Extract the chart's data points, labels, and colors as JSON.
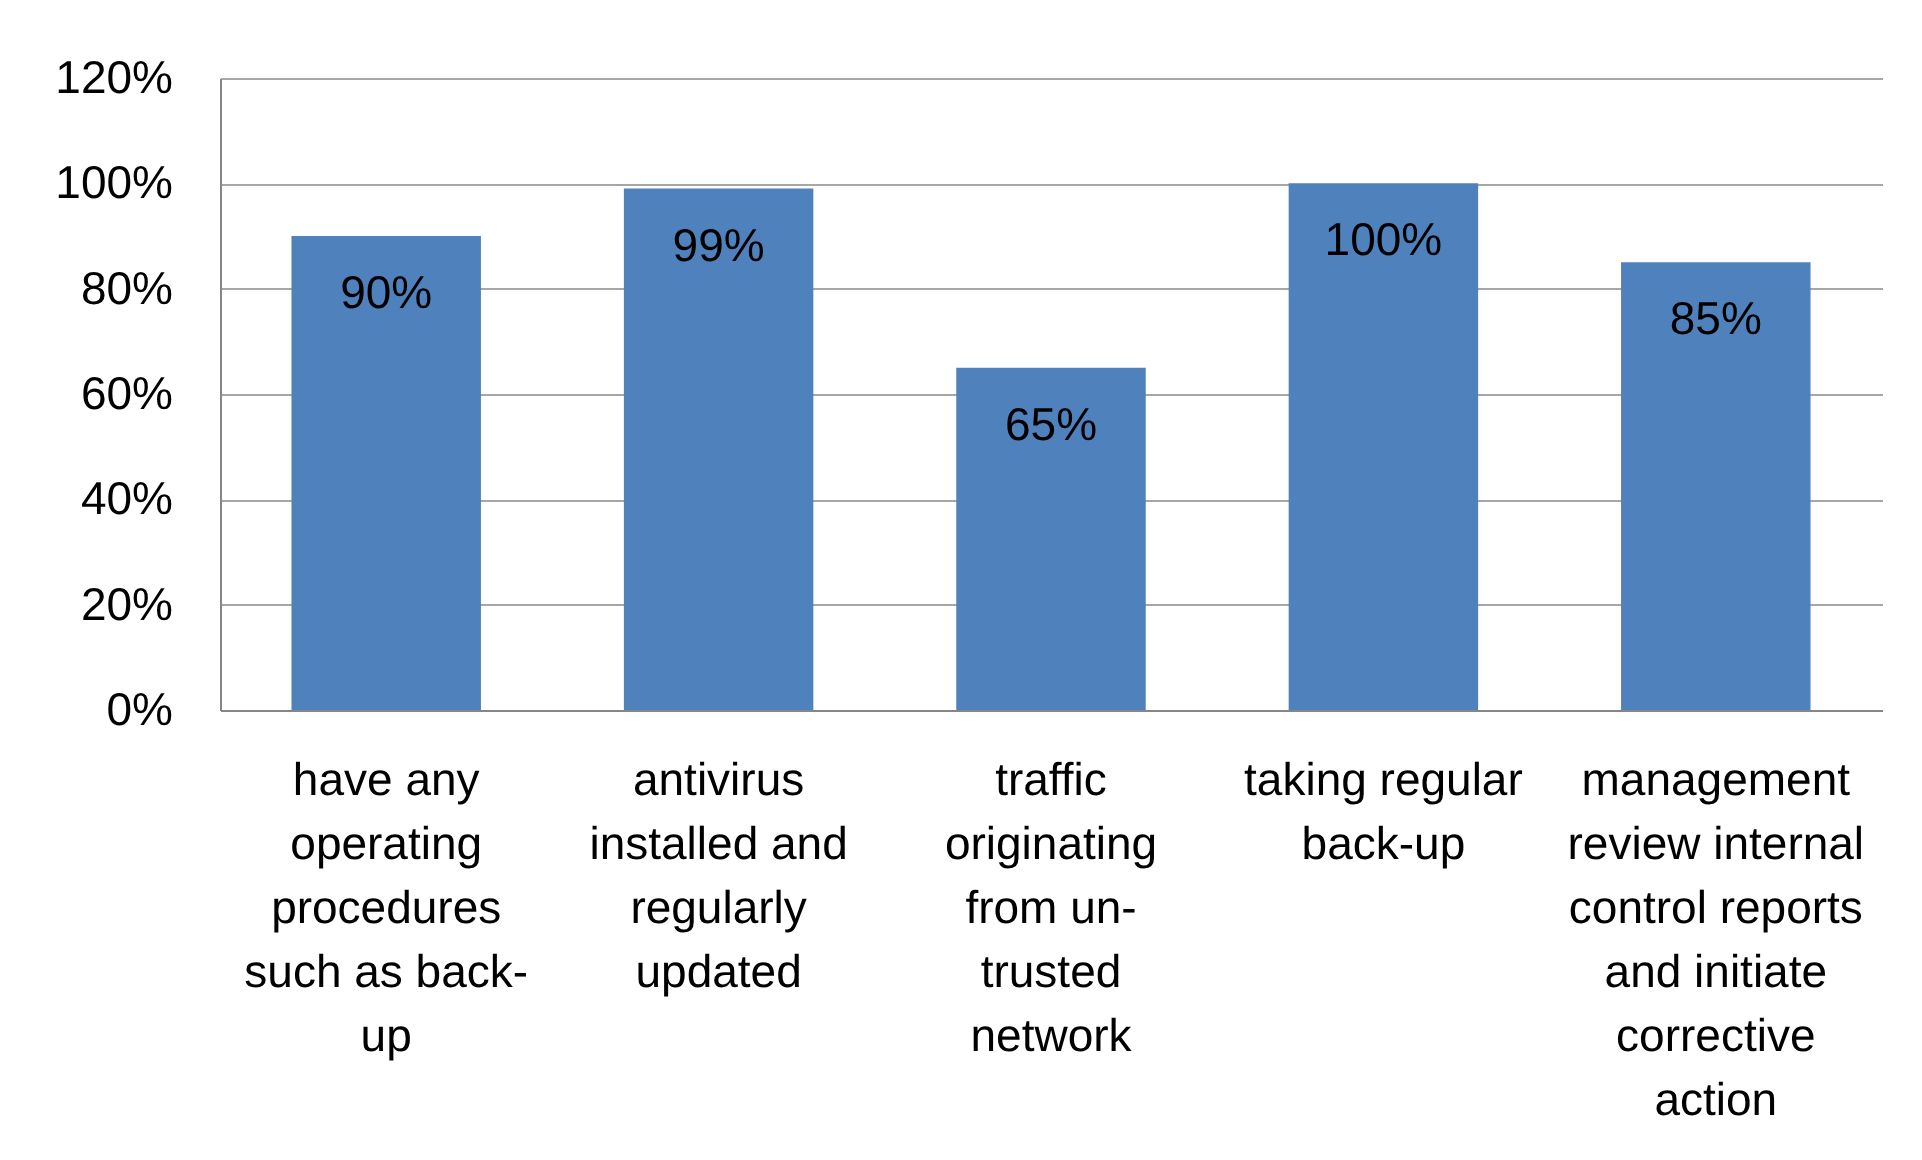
{
  "chart_data": {
    "type": "bar",
    "categories": [
      "have any operating procedures such as back-up",
      "antivirus installed and regularly updated",
      "traffic originating from un-trusted network",
      "taking regular back-up",
      "management review internal control reports and initiate corrective action"
    ],
    "values": [
      90,
      99,
      65,
      100,
      85
    ],
    "color": "#4f81bd",
    "value_labels": [
      "90%",
      "99%",
      "65%",
      "100%",
      "85%"
    ],
    "ylim": [
      0,
      120
    ],
    "yticks": [
      {
        "value": 0,
        "label": "0%"
      },
      {
        "value": 20,
        "label": "20%"
      },
      {
        "value": 40,
        "label": "40%"
      },
      {
        "value": 60,
        "label": "60%"
      },
      {
        "value": 80,
        "label": "80%"
      },
      {
        "value": 100,
        "label": "100%"
      },
      {
        "value": 120,
        "label": "120%"
      }
    ],
    "grid": "y"
  }
}
